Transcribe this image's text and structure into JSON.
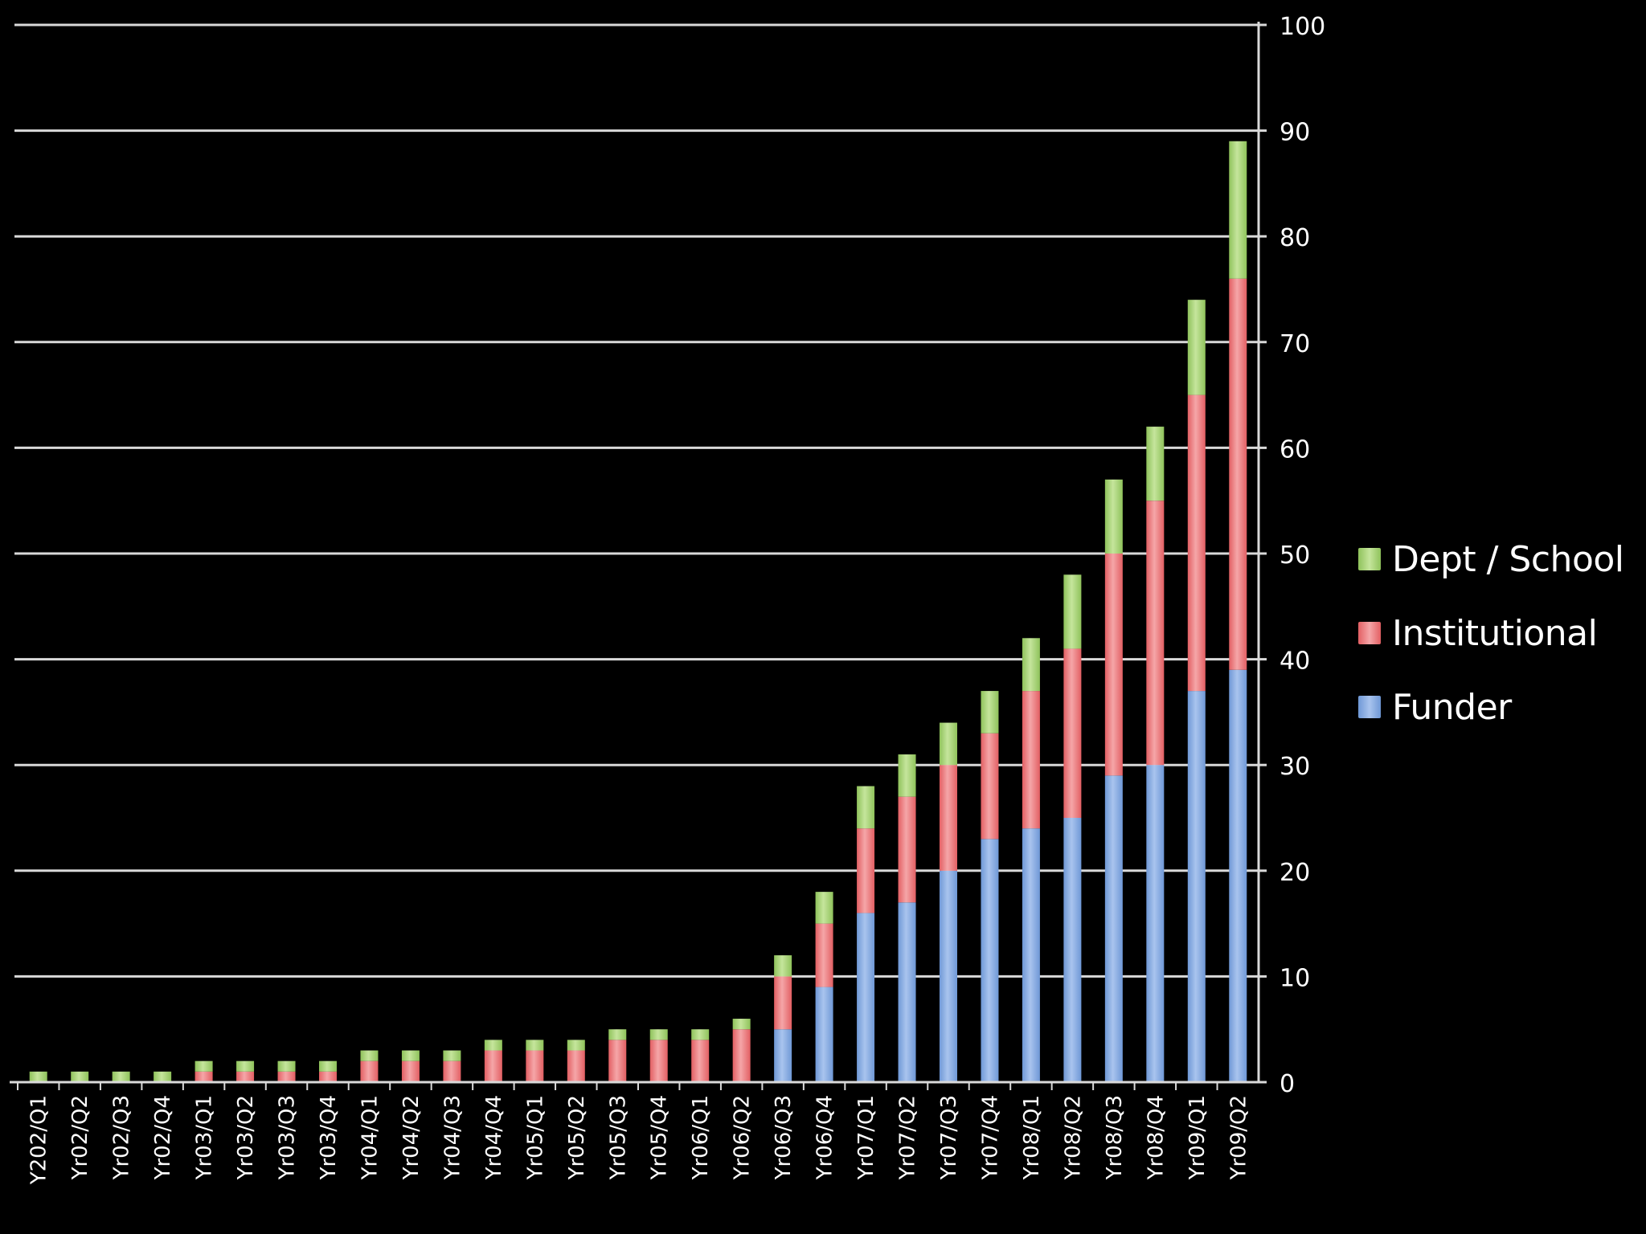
{
  "colors": {
    "background": "#000000",
    "grid": "#d9d9d9",
    "funder": "#6f98d6",
    "funder_light": "#a9c4ee",
    "institutional": "#e25f63",
    "institutional_light": "#f5a6a8",
    "dept_school": "#8fc25b",
    "dept_school_light": "#c5e59c"
  },
  "legend": {
    "items": [
      {
        "key": "dept_school",
        "label": "Dept / School"
      },
      {
        "key": "institutional",
        "label": "Institutional"
      },
      {
        "key": "funder",
        "label": "Funder"
      }
    ]
  },
  "chart_data": {
    "type": "bar",
    "stacked": true,
    "title": "",
    "xlabel": "",
    "ylabel": "",
    "ylim": [
      0,
      100
    ],
    "yticks": [
      0,
      10,
      20,
      30,
      40,
      50,
      60,
      70,
      80,
      90,
      100
    ],
    "y_axis_side": "right",
    "grid": true,
    "legend_position": "right",
    "categories": [
      "Y202/Q1",
      "Yr02/Q2",
      "Yr02/Q3",
      "Yr02/Q4",
      "Yr03/Q1",
      "Yr03/Q2",
      "Yr03/Q3",
      "Yr03/Q4",
      "Yr04/Q1",
      "Yr04/Q2",
      "Yr04/Q3",
      "Yr04/Q4",
      "Yr05/Q1",
      "Yr05/Q2",
      "Yr05/Q3",
      "Yr05/Q4",
      "Yr06/Q1",
      "Yr06/Q2",
      "Yr06/Q3",
      "Yr06/Q4",
      "Yr07/Q1",
      "Yr07/Q2",
      "Yr07/Q3",
      "Yr07/Q4",
      "Yr08/Q1",
      "Yr08/Q2",
      "Yr08/Q3",
      "Yr08/Q4",
      "Yr09/Q1",
      "Yr09/Q2"
    ],
    "series": [
      {
        "name": "Funder",
        "key": "funder",
        "values": [
          0,
          0,
          0,
          0,
          0,
          0,
          0,
          0,
          0,
          0,
          0,
          0,
          0,
          0,
          0,
          0,
          0,
          0,
          5,
          9,
          16,
          17,
          20,
          23,
          24,
          25,
          29,
          30,
          37,
          39
        ]
      },
      {
        "name": "Institutional",
        "key": "institutional",
        "values": [
          0,
          0,
          0,
          0,
          1,
          1,
          1,
          1,
          2,
          2,
          2,
          3,
          3,
          3,
          4,
          4,
          4,
          5,
          5,
          6,
          8,
          10,
          10,
          10,
          13,
          16,
          21,
          25,
          28,
          37
        ]
      },
      {
        "name": "Dept / School",
        "key": "dept_school",
        "values": [
          1,
          1,
          1,
          1,
          1,
          1,
          1,
          1,
          1,
          1,
          1,
          1,
          1,
          1,
          1,
          1,
          1,
          1,
          2,
          3,
          4,
          4,
          4,
          4,
          5,
          7,
          7,
          7,
          9,
          13
        ]
      }
    ]
  }
}
